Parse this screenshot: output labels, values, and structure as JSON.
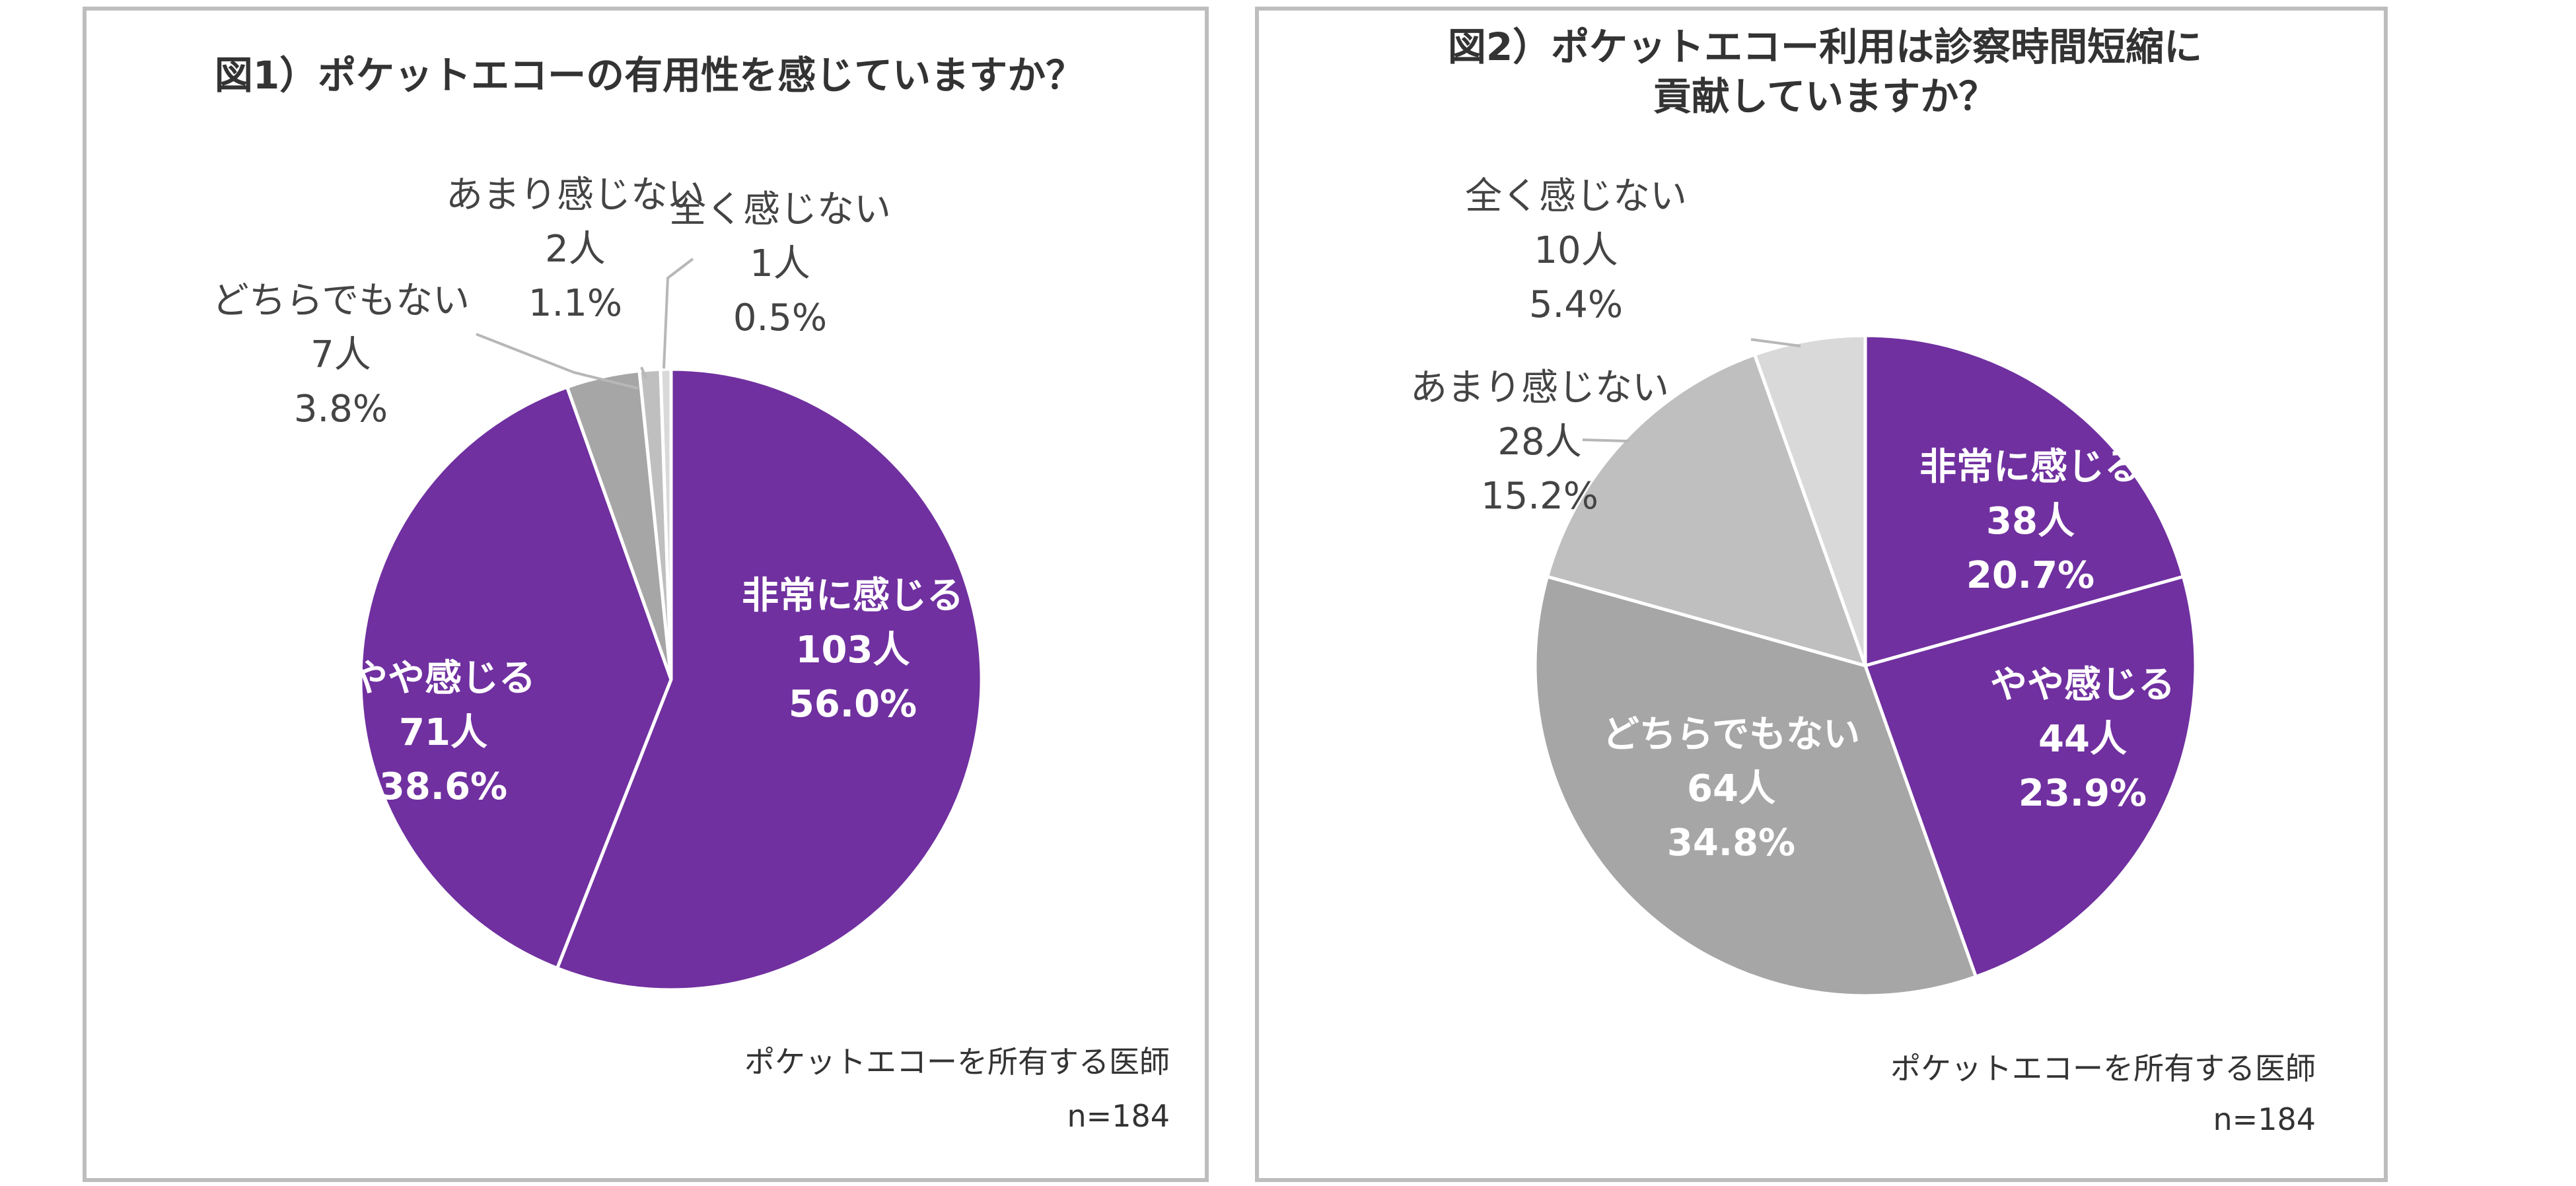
{
  "chart_data": [
    {
      "type": "pie",
      "title": "図1）ポケットエコーの有用性を感じていますか？",
      "categories": [
        "非常に感じる",
        "やや感じる",
        "どちらでもない",
        "あまり感じない",
        "全く感じない"
      ],
      "values": [
        103,
        71,
        7,
        2,
        1
      ],
      "counts_label": [
        "103人",
        "71人",
        "7人",
        "2人",
        "1人"
      ],
      "percent_label": [
        "56.0%",
        "38.6%",
        "3.8%",
        "1.1%",
        "0.5%"
      ],
      "colors": [
        "#7030a0",
        "#7030a0",
        "#a6a6a6",
        "#bfbfbf",
        "#d9d9d9"
      ],
      "note": "ポケットエコーを所有する医師",
      "n_label": "n=184"
    },
    {
      "type": "pie",
      "title": [
        "図2）ポケットエコー利用は診察時間短縮に",
        "貢献していますか？"
      ],
      "categories": [
        "非常に感じる",
        "やや感じる",
        "どちらでもない",
        "あまり感じない",
        "全く感じない"
      ],
      "values": [
        38,
        44,
        64,
        28,
        10
      ],
      "counts_label": [
        "38人",
        "44人",
        "64人",
        "28人",
        "10人"
      ],
      "percent_label": [
        "20.7%",
        "23.9%",
        "34.8%",
        "15.2%",
        "5.4%"
      ],
      "colors": [
        "#7030a0",
        "#7030a0",
        "#a6a6a6",
        "#bfbfbf",
        "#d9d9d9"
      ],
      "note": "ポケットエコーを所有する医師",
      "n_label": "n=184"
    }
  ]
}
